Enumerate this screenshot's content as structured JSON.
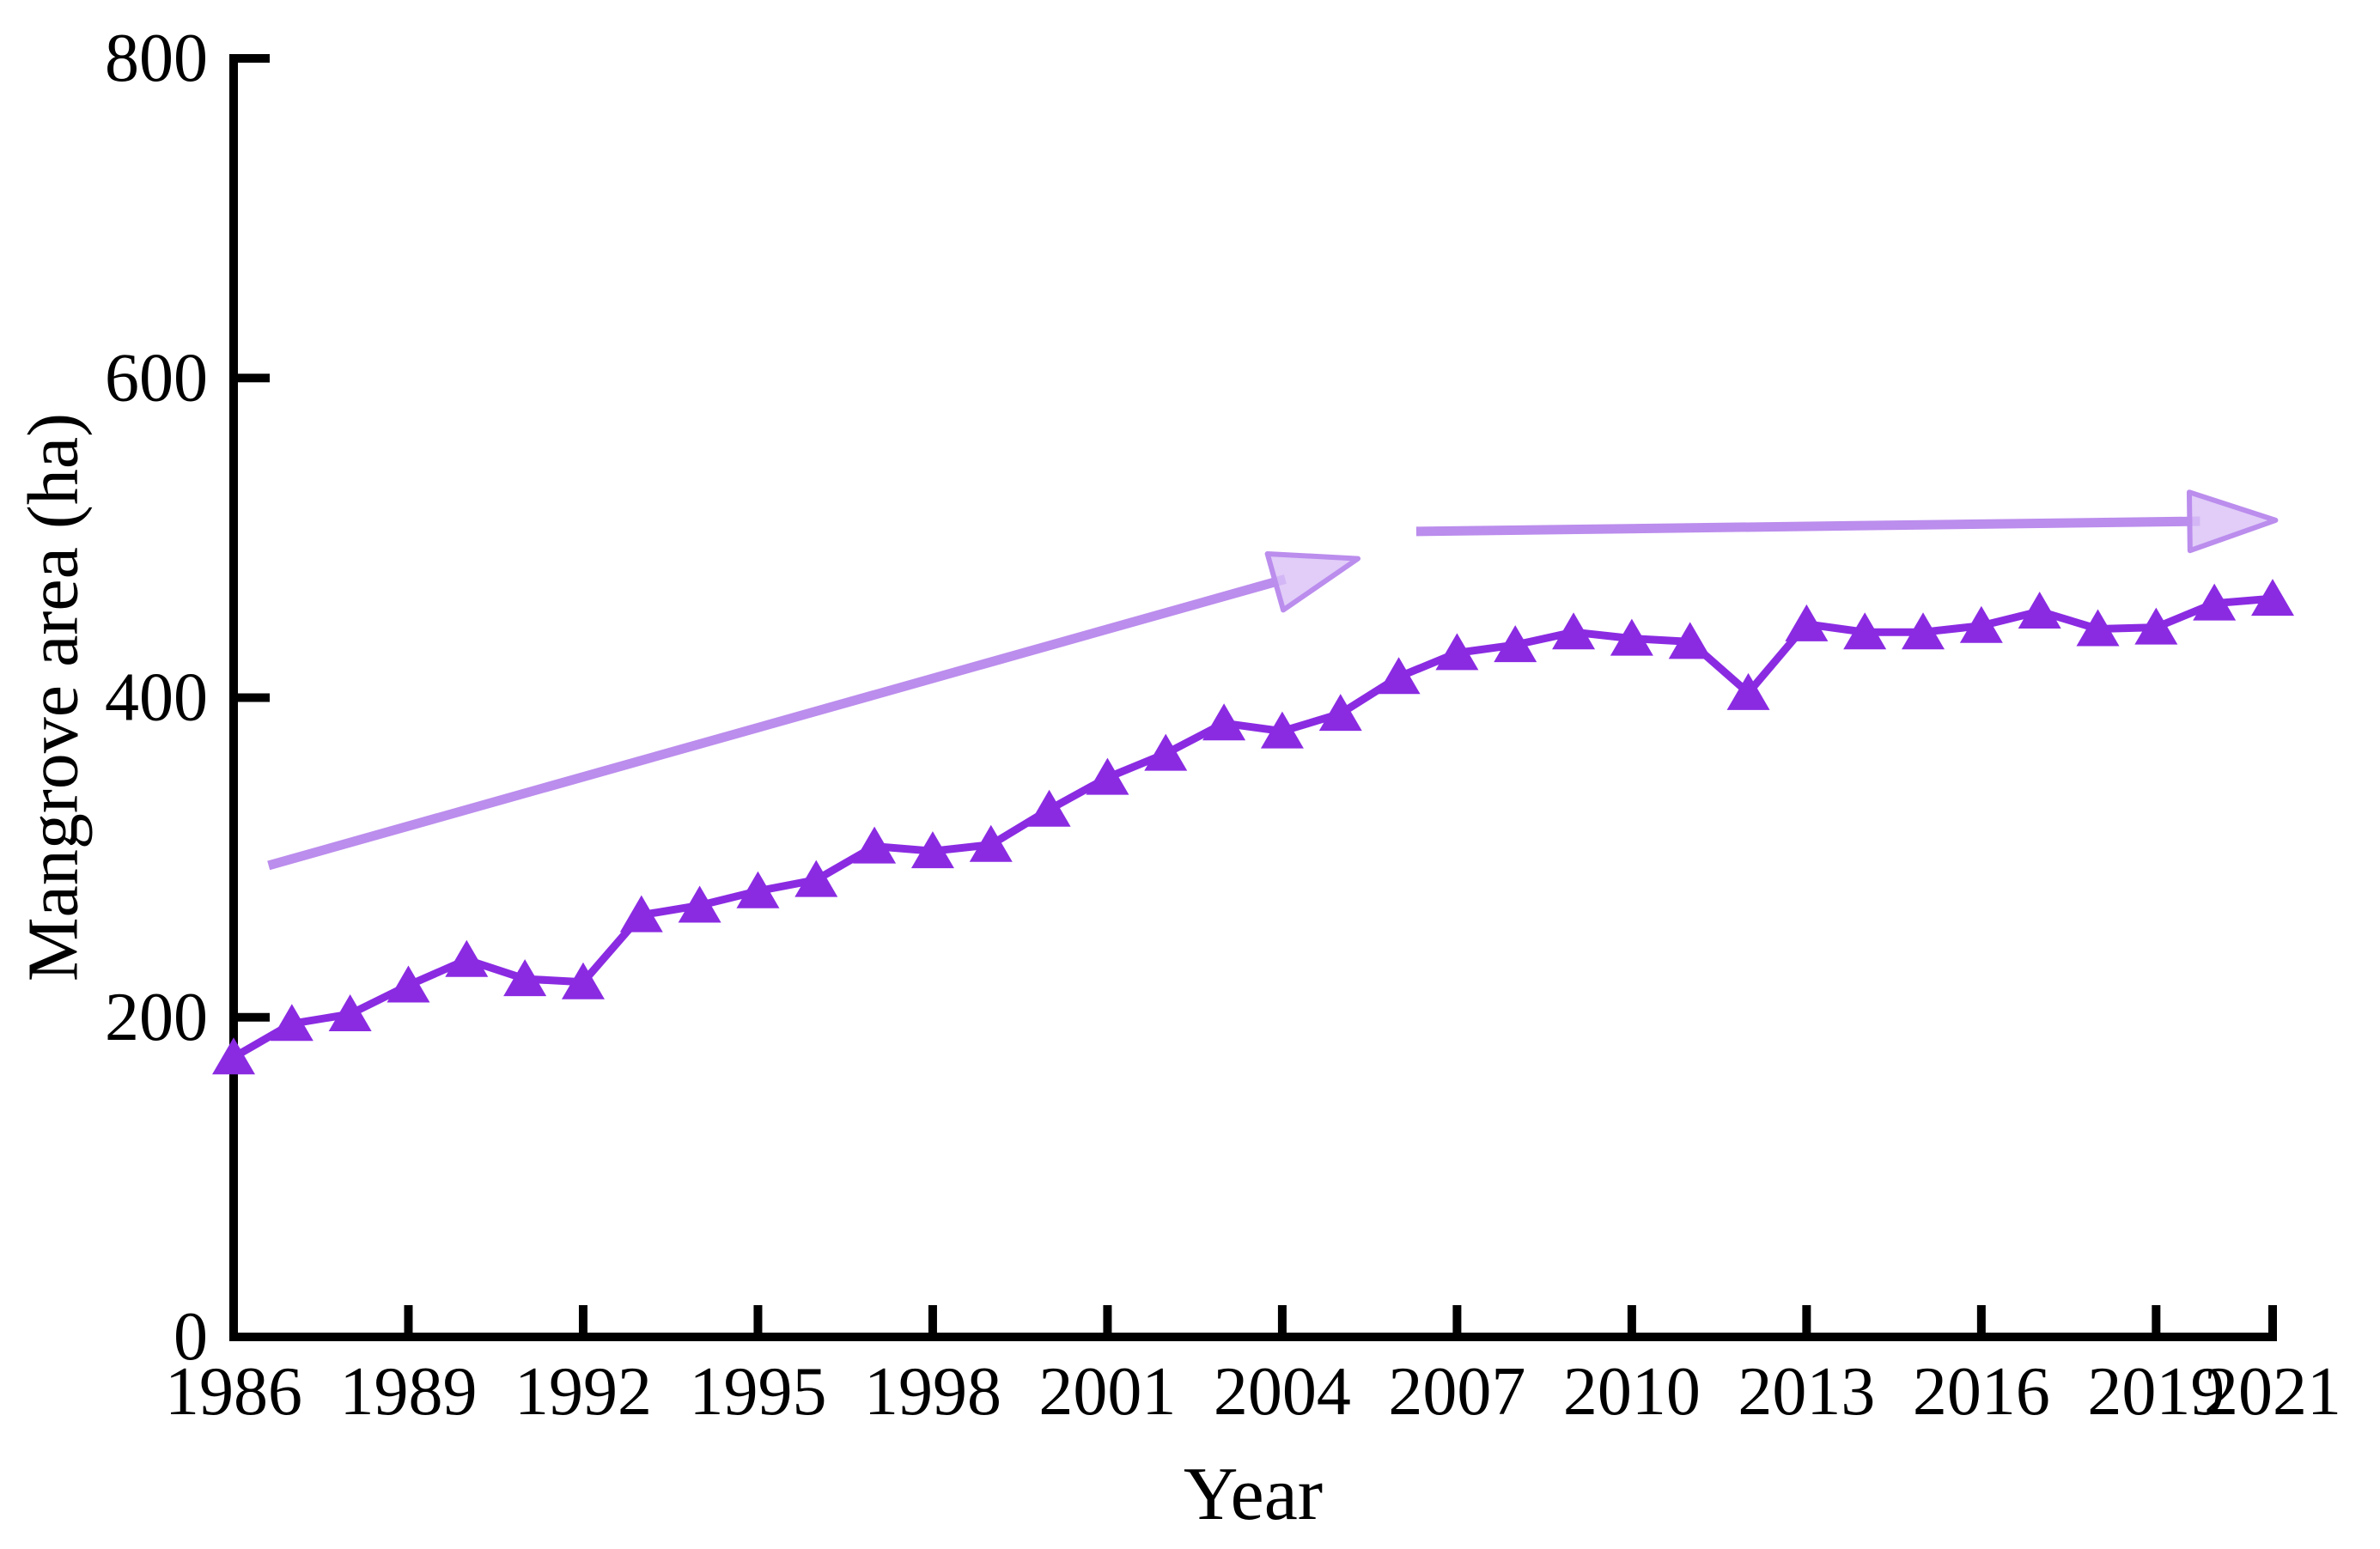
{
  "chart_data": {
    "type": "line",
    "title": "",
    "xlabel": "Year",
    "ylabel": "Mangrove area (ha)",
    "x": [
      1986,
      1987,
      1988,
      1989,
      1990,
      1991,
      1992,
      1993,
      1994,
      1995,
      1996,
      1997,
      1998,
      1999,
      2000,
      2001,
      2002,
      2003,
      2004,
      2005,
      2006,
      2007,
      2008,
      2009,
      2010,
      2011,
      2012,
      2013,
      2014,
      2015,
      2016,
      2017,
      2018,
      2019,
      2020,
      2021
    ],
    "series": [
      {
        "name": "Mangrove area",
        "marker": "triangle-up",
        "values": [
          175,
          196,
          202,
          220,
          236,
          224,
          222,
          264,
          270,
          279,
          286,
          307,
          304,
          308,
          330,
          350,
          365,
          384,
          379,
          390,
          413,
          428,
          433,
          441,
          437,
          435,
          403,
          446,
          441,
          441,
          445,
          454,
          443,
          444,
          459,
          462
        ]
      }
    ],
    "xlim": [
      1986,
      2021
    ],
    "ylim": [
      0,
      800
    ],
    "xticks": [
      1986,
      1989,
      1992,
      1995,
      1998,
      2001,
      2004,
      2007,
      2010,
      2013,
      2016,
      2019,
      2021
    ],
    "yticks": [
      0,
      200,
      400,
      600,
      800
    ],
    "grid": false,
    "legend": "none",
    "annotations": {
      "trend_arrows": [
        {
          "x1": 1986.6,
          "y1": 295,
          "x2": 2005.3,
          "y2": 487
        },
        {
          "x1": 2006.3,
          "y1": 504,
          "x2": 2021.05,
          "y2": 511
        }
      ]
    },
    "colors": {
      "series": "#8a2be2",
      "trend_stroke": "#bb8ded",
      "trend_fill": "#d9c0f6",
      "axis": "#000000",
      "text": "#000000",
      "background": "#ffffff"
    }
  }
}
